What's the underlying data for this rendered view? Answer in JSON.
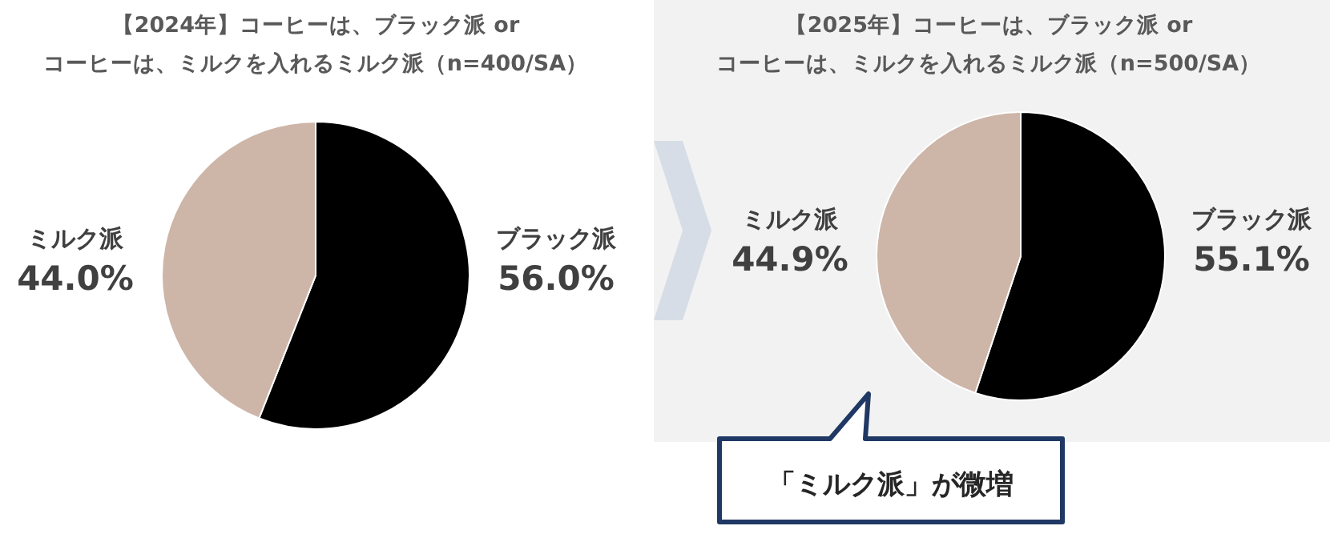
{
  "chart_data": [
    {
      "type": "pie",
      "title": "【2024年】コーヒーは、ブラック派 or\nコーヒーは、ミルクを入れるミルク派（n=400/SA）",
      "categories": [
        "ブラック派",
        "ミルク派"
      ],
      "values": [
        56.0,
        44.0
      ],
      "colors": [
        "#000000",
        "#cdb5a8"
      ],
      "value_labels": [
        "56.0%",
        "44.0%"
      ]
    },
    {
      "type": "pie",
      "title": "【2025年】コーヒーは、ブラック派 or\nコーヒーは、ミルクを入れるミルク派（n=500/SA）",
      "categories": [
        "ブラック派",
        "ミルク派"
      ],
      "values": [
        55.1,
        44.9
      ],
      "colors": [
        "#000000",
        "#cdb5a8"
      ],
      "value_labels": [
        "55.1%",
        "44.9%"
      ],
      "annotations": [
        "「ミルク派」が微増"
      ]
    }
  ]
}
